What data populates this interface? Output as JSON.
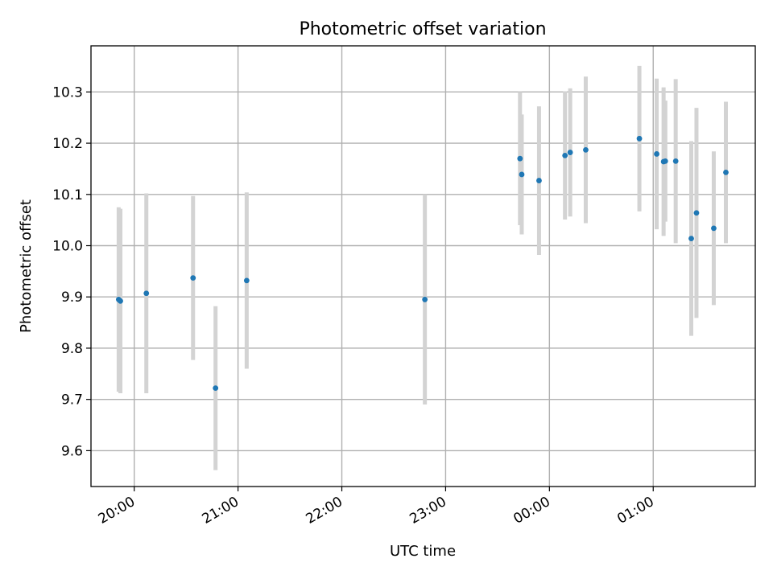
{
  "chart_data": {
    "type": "scatter",
    "title": "Photometric offset variation",
    "xlabel": "UTC time",
    "ylabel": "Photometric offset",
    "x_axis": "time",
    "xlim": [
      "19:35",
      "01:59"
    ],
    "ylim": [
      9.53,
      10.39
    ],
    "x_ticks": [
      "20:00",
      "21:00",
      "22:00",
      "23:00",
      "00:00",
      "01:00"
    ],
    "y_ticks": [
      "9.6",
      "9.7",
      "9.8",
      "9.9",
      "10.0",
      "10.1",
      "10.2",
      "10.3"
    ],
    "grid": true,
    "errorbar_color": "#d3d3d3",
    "point_color": "#1f77b4",
    "series": [
      {
        "points": [
          {
            "x": "19:51",
            "y": 9.895,
            "yerr": 0.18
          },
          {
            "x": "19:52",
            "y": 9.892,
            "yerr": 0.18
          },
          {
            "x": "20:07",
            "y": 9.907,
            "yerr": 0.195
          },
          {
            "x": "20:34",
            "y": 9.937,
            "yerr": 0.16
          },
          {
            "x": "20:47",
            "y": 9.722,
            "yerr": 0.16
          },
          {
            "x": "21:05",
            "y": 9.932,
            "yerr": 0.172
          },
          {
            "x": "22:48",
            "y": 9.895,
            "yerr": 0.205
          },
          {
            "x": "23:43",
            "y": 10.17,
            "yerr": 0.13
          },
          {
            "x": "23:44",
            "y": 10.139,
            "yerr": 0.117
          },
          {
            "x": "23:54",
            "y": 10.127,
            "yerr": 0.145
          },
          {
            "x": "00:09",
            "y": 10.176,
            "yerr": 0.125
          },
          {
            "x": "00:12",
            "y": 10.182,
            "yerr": 0.125
          },
          {
            "x": "00:21",
            "y": 10.187,
            "yerr": 0.143
          },
          {
            "x": "00:52",
            "y": 10.209,
            "yerr": 0.142
          },
          {
            "x": "01:02",
            "y": 10.179,
            "yerr": 0.147
          },
          {
            "x": "01:06",
            "y": 10.164,
            "yerr": 0.145
          },
          {
            "x": "01:07",
            "y": 10.165,
            "yerr": 0.118
          },
          {
            "x": "01:13",
            "y": 10.165,
            "yerr": 0.16
          },
          {
            "x": "01:22",
            "y": 10.014,
            "yerr": 0.19
          },
          {
            "x": "01:25",
            "y": 10.064,
            "yerr": 0.205
          },
          {
            "x": "01:35",
            "y": 10.034,
            "yerr": 0.15
          },
          {
            "x": "01:42",
            "y": 10.143,
            "yerr": 0.138
          }
        ]
      }
    ]
  }
}
